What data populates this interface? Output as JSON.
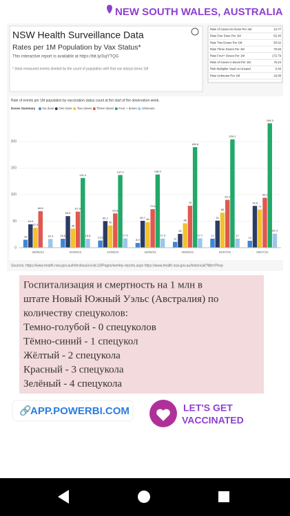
{
  "location": "NEW SOUTH WALES, AUSTRALIA",
  "report": {
    "title": "NSW Health Surveillance Data",
    "subtitle": "Rates per 1M Population by Vax Status*",
    "link_text": "This interactive report is available at https://bit.ly/3ujYTQG",
    "note": "* (total measured events divided by the count of population with that vax status) times 1M"
  },
  "table": {
    "rows": [
      [
        "Rate of Cases No Dose Per 1M",
        "13.77"
      ],
      [
        "Rate One Dose Per 1M",
        "52.40"
      ],
      [
        "Rate Two Doses Per 1M",
        "50.62"
      ],
      [
        "Rate Three Doses Per 1M",
        "76.83"
      ],
      [
        "Rate Four+ Doses Per 1M",
        "172.79"
      ],
      [
        "Rate of Cases in Boost Per 1M",
        "75.24"
      ],
      [
        "Risk Multiplier Vaxd vs Unvaxd",
        "5.46"
      ],
      [
        "Rate Unknown Per 1M",
        "19.08"
      ]
    ]
  },
  "chart_data": {
    "type": "bar",
    "title": "Rate of events per 1M population by vaccination status count at the start of the observation week.",
    "legend_title": "Doses Summary",
    "categories": [
      "28/05/22",
      "04/06/22",
      "11/06/22",
      "18/06/22",
      "25/06/22",
      "02/07/22",
      "09/07/22"
    ],
    "series": [
      {
        "name": "No dose",
        "color": "#3e86d6",
        "values": [
          15.0,
          16.8,
          13.5,
          8.9,
          11.0,
          17.0,
          13.0
        ],
        "value_labels": [
          "15",
          "16.8",
          "13.5",
          "8.9",
          "11",
          "17",
          "13"
        ]
      },
      {
        "name": "One dose",
        "color": "#2c3b66",
        "values": [
          44.0,
          59.5,
          50.2,
          50.7,
          26.0,
          51.0,
          78.8
        ],
        "value_labels": [
          "44.0",
          "59.5",
          "50.2",
          "50.7",
          "26",
          "51",
          "78.8"
        ]
      },
      {
        "name": "Two doses",
        "color": "#f2c12e",
        "values": [
          37.5,
          36.0,
          42.0,
          48.0,
          46.0,
          66.0,
          72.0
        ],
        "value_labels": [
          "37.5",
          "36",
          "42",
          "48",
          "46",
          "66",
          "72"
        ]
      },
      {
        "name": "Three doses",
        "color": "#e0584f",
        "values": [
          68.8,
          67.9,
          64.6,
          72.6,
          79.0,
          90.2,
          94.1
        ],
        "value_labels": [
          "68.8",
          "67.9",
          "64.6",
          "72.6",
          "79",
          "90.2",
          "94.1"
        ]
      },
      {
        "name": "Four + doses",
        "color": "#22a868",
        "values": [
          null,
          131.4,
          137.0,
          138.0,
          189.6,
          204.2,
          234.5
        ],
        "value_labels": [
          null,
          "131.4",
          "137.0",
          "138.0",
          "189.6",
          "204.2",
          "234.5"
        ]
      },
      {
        "name": "Unknown",
        "color": "#9cc6ea",
        "values": [
          16.4,
          16.8,
          17.5,
          17.3,
          17.7,
          17.0,
          26.4
        ],
        "value_labels": [
          "16.4",
          "16.8",
          "17.5",
          "17.3",
          "17.7",
          "17",
          "26.4"
        ]
      }
    ],
    "ylim": [
      0,
      240
    ],
    "yticks": [
      0,
      50,
      100,
      150,
      200
    ],
    "grid": true
  },
  "sources": "Sources: https://www.health.nsw.gov.au/Infectious/covid-19/Pages/weekly-reports.aspx   https://www.health.nsw.gov.au/historical/?title=Peop",
  "caption": [
    "Госпитализация и смертность на 1 млн в",
    "штате Новый Южный Уэльс (Австралия) по",
    "количеству спецуколов:",
    "Темно-голубой - 0 спецуколов",
    "Тёмно-синий - 1 спецукол",
    "Жёлтый - 2 спецукола",
    "Красный - 3 спецукола",
    "Зелёный - 4 спецукола"
  ],
  "link": "APP.POWERBI.COM",
  "badge": [
    "LET'S GET",
    "VACCINATED"
  ]
}
